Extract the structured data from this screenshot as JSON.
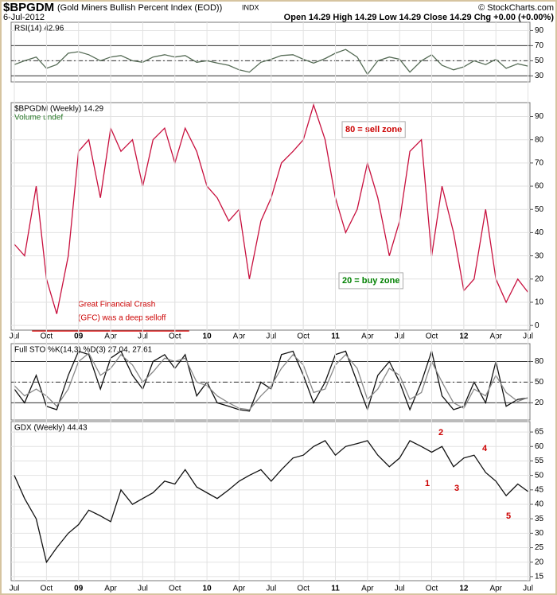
{
  "header": {
    "symbol": "$BPGDM",
    "name": "(Gold Miners Bullish Percent Index (EOD))",
    "exchange": "INDX",
    "copyright": "© StockCharts.com",
    "date": "6-Jul-2012",
    "quote": "Open 14.29  High 14.29  Low 14.29  Close 14.29  Chg +0.00 (+0.00%)"
  },
  "chart_data": [
    {
      "type": "line",
      "title": "RSI(14) 42.96",
      "x": [
        2008.5,
        2008.58,
        2008.67,
        2008.75,
        2008.83,
        2008.92,
        2009,
        2009.08,
        2009.17,
        2009.25,
        2009.33,
        2009.42,
        2009.5,
        2009.58,
        2009.67,
        2009.75,
        2009.83,
        2009.92,
        2010,
        2010.08,
        2010.17,
        2010.25,
        2010.33,
        2010.42,
        2010.5,
        2010.58,
        2010.67,
        2010.75,
        2010.83,
        2010.92,
        2011,
        2011.08,
        2011.17,
        2011.25,
        2011.33,
        2011.42,
        2011.5,
        2011.58,
        2011.67,
        2011.75,
        2011.83,
        2011.92,
        2012,
        2012.08,
        2012.17,
        2012.25,
        2012.33,
        2012.42,
        2012.5
      ],
      "series": [
        {
          "color": "#556b55",
          "values": [
            45,
            50,
            55,
            40,
            45,
            60,
            62,
            58,
            50,
            55,
            57,
            50,
            48,
            55,
            58,
            55,
            57,
            48,
            50,
            47,
            44,
            38,
            35,
            48,
            52,
            57,
            58,
            52,
            47,
            53,
            60,
            65,
            55,
            32,
            50,
            55,
            52,
            35,
            50,
            58,
            44,
            38,
            42,
            50,
            45,
            52,
            40,
            46,
            42.96
          ]
        }
      ],
      "xlim": [
        2008.475,
        2012.515
      ],
      "ylim": [
        22,
        101
      ],
      "yticks": [
        30,
        50,
        70,
        90
      ],
      "reference_lines": [
        70,
        50,
        30
      ],
      "grid": true
    },
    {
      "type": "line",
      "title": "$BPGDM (Weekly) 14.29",
      "subtitle": "Volume undef",
      "x": [
        2008.5,
        2008.58,
        2008.67,
        2008.75,
        2008.83,
        2008.92,
        2009,
        2009.08,
        2009.17,
        2009.25,
        2009.33,
        2009.42,
        2009.5,
        2009.58,
        2009.67,
        2009.75,
        2009.83,
        2009.92,
        2010,
        2010.08,
        2010.17,
        2010.25,
        2010.33,
        2010.42,
        2010.5,
        2010.58,
        2010.67,
        2010.75,
        2010.83,
        2010.92,
        2011,
        2011.08,
        2011.17,
        2011.25,
        2011.33,
        2011.42,
        2011.5,
        2011.58,
        2011.67,
        2011.75,
        2011.83,
        2011.92,
        2012,
        2012.08,
        2012.17,
        2012.25,
        2012.33,
        2012.42,
        2012.5
      ],
      "series": [
        {
          "color": "#c8103e",
          "values": [
            35,
            30,
            60,
            20,
            5,
            30,
            75,
            80,
            55,
            85,
            75,
            80,
            60,
            80,
            85,
            70,
            85,
            75,
            60,
            55,
            45,
            50,
            20,
            45,
            55,
            70,
            75,
            80,
            95,
            80,
            55,
            40,
            50,
            70,
            55,
            30,
            45,
            75,
            80,
            30,
            60,
            40,
            15,
            20,
            50,
            20,
            10,
            20,
            14.29
          ]
        }
      ],
      "xlim": [
        2008.475,
        2012.515
      ],
      "ylim": [
        -2,
        96
      ],
      "yticks": [
        0,
        10,
        20,
        30,
        40,
        50,
        60,
        70,
        80,
        90
      ],
      "xticks": [
        {
          "value": 2008.5,
          "label": "Jul"
        },
        {
          "value": 2008.75,
          "label": "Oct"
        },
        {
          "value": 2009,
          "label": "09"
        },
        {
          "value": 2009.25,
          "label": "Apr"
        },
        {
          "value": 2009.5,
          "label": "Jul"
        },
        {
          "value": 2009.75,
          "label": "Oct"
        },
        {
          "value": 2010,
          "label": "10"
        },
        {
          "value": 2010.25,
          "label": "Apr"
        },
        {
          "value": 2010.5,
          "label": "Jul"
        },
        {
          "value": 2010.75,
          "label": "Oct"
        },
        {
          "value": 2011,
          "label": "11"
        },
        {
          "value": 2011.25,
          "label": "Apr"
        },
        {
          "value": 2011.5,
          "label": "Jul"
        },
        {
          "value": 2011.75,
          "label": "Oct"
        },
        {
          "value": 2012,
          "label": "12"
        },
        {
          "value": 2012.25,
          "label": "Apr"
        },
        {
          "value": 2012.5,
          "label": "Jul"
        }
      ],
      "annotations": [
        {
          "text": "80 = sell zone",
          "color": "#cc0000"
        },
        {
          "text": "20 = buy zone",
          "color": "#008000"
        },
        {
          "text": "Great Financial Crash",
          "color": "#cc0000"
        },
        {
          "text": "(GFC) was a deep selloff",
          "color": "#cc0000"
        }
      ],
      "grid": true
    },
    {
      "type": "line",
      "title": "Full STO %K(14,3) %D(3) 27.04, 27.61",
      "x": [
        2008.5,
        2008.58,
        2008.67,
        2008.75,
        2008.83,
        2008.92,
        2009,
        2009.08,
        2009.17,
        2009.25,
        2009.33,
        2009.42,
        2009.5,
        2009.58,
        2009.67,
        2009.75,
        2009.83,
        2009.92,
        2010,
        2010.08,
        2010.17,
        2010.25,
        2010.33,
        2010.42,
        2010.5,
        2010.58,
        2010.67,
        2010.75,
        2010.83,
        2010.92,
        2011,
        2011.08,
        2011.17,
        2011.25,
        2011.33,
        2011.42,
        2011.5,
        2011.58,
        2011.67,
        2011.75,
        2011.83,
        2011.92,
        2012,
        2012.08,
        2012.17,
        2012.25,
        2012.33,
        2012.42,
        2012.5
      ],
      "series": [
        {
          "color": "#111111",
          "values": [
            40,
            20,
            60,
            15,
            10,
            60,
            95,
            90,
            40,
            85,
            95,
            60,
            40,
            80,
            90,
            70,
            90,
            30,
            50,
            20,
            15,
            10,
            8,
            50,
            40,
            90,
            95,
            60,
            20,
            50,
            90,
            95,
            50,
            10,
            60,
            80,
            50,
            10,
            50,
            95,
            30,
            10,
            15,
            50,
            20,
            80,
            15,
            25,
            27.04
          ]
        },
        {
          "color": "#888888",
          "values": [
            45,
            30,
            40,
            30,
            15,
            40,
            80,
            92,
            60,
            70,
            90,
            75,
            50,
            65,
            85,
            80,
            85,
            50,
            45,
            30,
            20,
            12,
            10,
            30,
            45,
            70,
            90,
            75,
            35,
            40,
            75,
            90,
            70,
            25,
            40,
            70,
            60,
            25,
            35,
            80,
            50,
            20,
            12,
            40,
            30,
            60,
            35,
            22,
            27.61
          ]
        }
      ],
      "xlim": [
        2008.475,
        2012.515
      ],
      "ylim": [
        -5,
        106
      ],
      "yticks": [
        20,
        50,
        80
      ],
      "reference_lines": [
        80,
        50,
        20
      ],
      "grid": true
    },
    {
      "type": "line",
      "title": "GDX (Weekly) 44.43",
      "x": [
        2008.5,
        2008.58,
        2008.67,
        2008.75,
        2008.83,
        2008.92,
        2009,
        2009.08,
        2009.17,
        2009.25,
        2009.33,
        2009.42,
        2009.5,
        2009.58,
        2009.67,
        2009.75,
        2009.83,
        2009.92,
        2010,
        2010.08,
        2010.17,
        2010.25,
        2010.33,
        2010.42,
        2010.5,
        2010.58,
        2010.67,
        2010.75,
        2010.83,
        2010.92,
        2011,
        2011.08,
        2011.17,
        2011.25,
        2011.33,
        2011.42,
        2011.5,
        2011.58,
        2011.67,
        2011.75,
        2011.83,
        2011.92,
        2012,
        2012.08,
        2012.17,
        2012.25,
        2012.33,
        2012.42,
        2012.5
      ],
      "series": [
        {
          "color": "#111111",
          "values": [
            50,
            42,
            35,
            20,
            25,
            30,
            33,
            38,
            36,
            34,
            45,
            40,
            42,
            44,
            48,
            47,
            52,
            46,
            44,
            42,
            45,
            48,
            50,
            52,
            48,
            52,
            56,
            57,
            60,
            62,
            57,
            60,
            61,
            62,
            57,
            53,
            56,
            62,
            60,
            58,
            60,
            53,
            56,
            57,
            51,
            48,
            43,
            47,
            44.43
          ]
        }
      ],
      "xlim": [
        2008.475,
        2012.515
      ],
      "ylim": [
        13.6,
        68.6
      ],
      "yticks": [
        15,
        20,
        25,
        30,
        35,
        40,
        45,
        50,
        55,
        60,
        65
      ],
      "xticks": [
        {
          "value": 2008.5,
          "label": "Jul"
        },
        {
          "value": 2008.75,
          "label": "Oct"
        },
        {
          "value": 2009,
          "label": "09"
        },
        {
          "value": 2009.25,
          "label": "Apr"
        },
        {
          "value": 2009.5,
          "label": "Jul"
        },
        {
          "value": 2009.75,
          "label": "Oct"
        },
        {
          "value": 2010,
          "label": "10"
        },
        {
          "value": 2010.25,
          "label": "Apr"
        },
        {
          "value": 2010.5,
          "label": "Jul"
        },
        {
          "value": 2010.75,
          "label": "Oct"
        },
        {
          "value": 2011,
          "label": "11"
        },
        {
          "value": 2011.25,
          "label": "Apr"
        },
        {
          "value": 2011.5,
          "label": "Jul"
        },
        {
          "value": 2011.75,
          "label": "Oct"
        },
        {
          "value": 2012,
          "label": "12"
        },
        {
          "value": 2012.25,
          "label": "Apr"
        },
        {
          "value": 2012.5,
          "label": "Jul"
        }
      ],
      "annotations": [
        {
          "text": "1",
          "color": "#cc0000"
        },
        {
          "text": "2",
          "color": "#cc0000"
        },
        {
          "text": "3",
          "color": "#cc0000"
        },
        {
          "text": "4",
          "color": "#cc0000"
        },
        {
          "text": "5",
          "color": "#cc0000"
        }
      ],
      "grid": true
    }
  ]
}
